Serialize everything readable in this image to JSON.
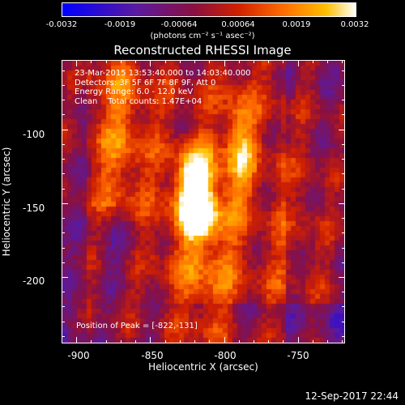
{
  "colorbar": {
    "ticks": [
      "-0.0032",
      "-0.0019",
      "-0.00064",
      "0.00064",
      "0.0019",
      "0.0032"
    ],
    "units": "(photons cm⁻² s⁻¹ asec⁻²)"
  },
  "plot": {
    "title": "Reconstructed RHESSI Image",
    "info": [
      "23-Mar-2015 13:53:40.000 to 14:03:40.000",
      "Detectors: 3F 5F 6F 7F 8F 9F, Att 0",
      "Energy Range: 6.0 - 12.0 keV",
      "Clean    Total counts: 1.47E+04"
    ],
    "peak": "Position of Peak = [-822,-131]",
    "xlabel": "Heliocentric X (arcsec)",
    "ylabel": "Heliocentric Y (arcsec)",
    "xticks": [
      "-900",
      "-850",
      "-800",
      "-750"
    ],
    "yticks": [
      "-100",
      "-150",
      "-200"
    ]
  },
  "footer": "12-Sep-2017 22:44",
  "chart_data": {
    "type": "heatmap",
    "title": "Reconstructed RHESSI Image",
    "xlabel": "Heliocentric X (arcsec)",
    "ylabel": "Heliocentric Y (arcsec)",
    "xlim": [
      -910,
      -718
    ],
    "ylim": [
      -245,
      -53
    ],
    "colorbar_range": [
      -0.0032,
      0.0032
    ],
    "peak": [
      -822,
      -131
    ],
    "colormap": [
      "#0000ff",
      "#5a1aa0",
      "#8a1040",
      "#d02000",
      "#ff6a00",
      "#ffc000",
      "#ffffff"
    ]
  }
}
